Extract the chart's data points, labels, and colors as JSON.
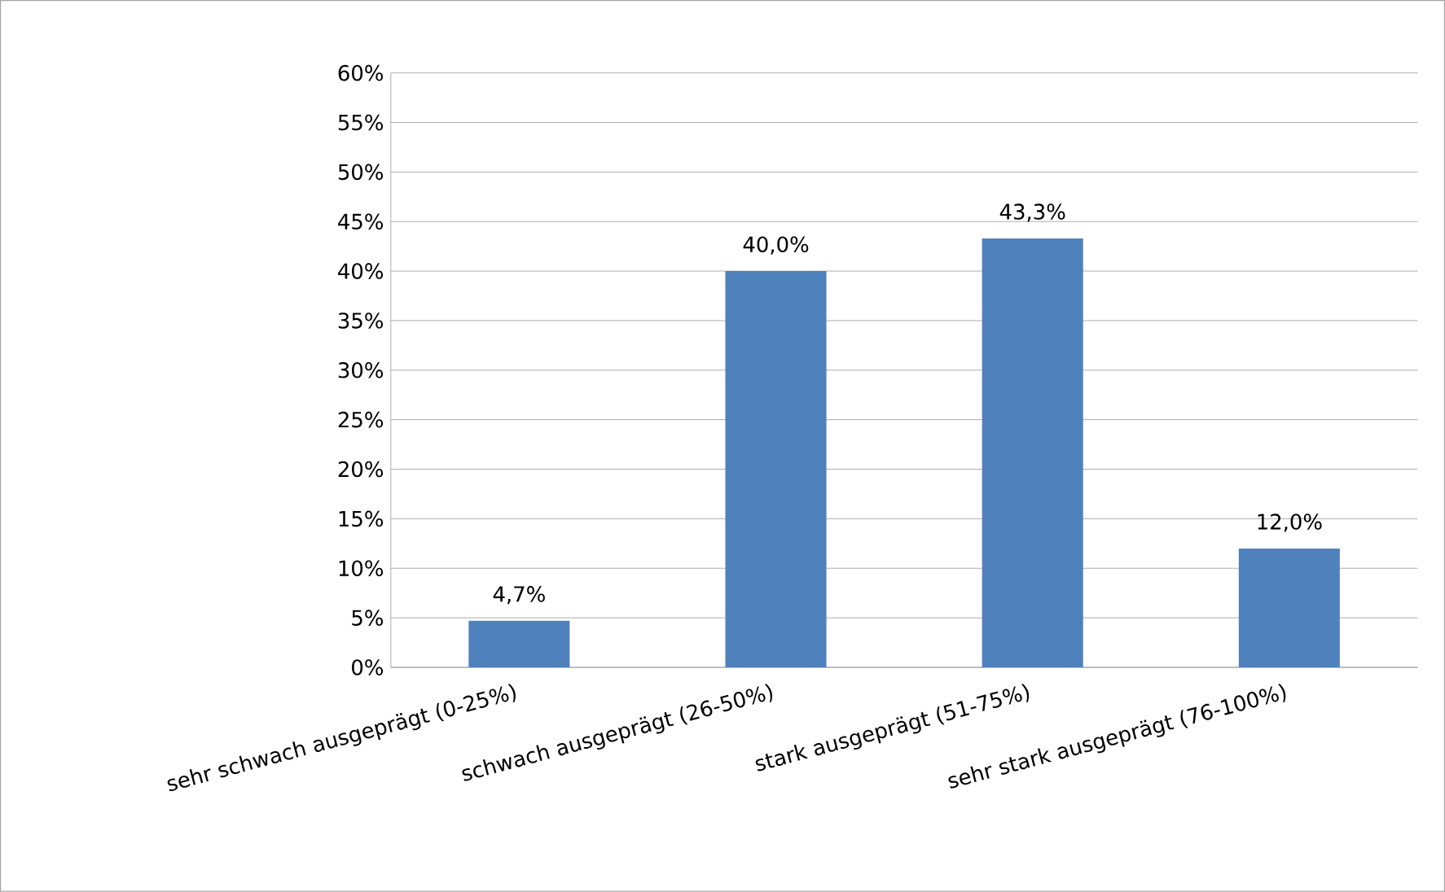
{
  "chart_data": {
    "type": "bar",
    "categories": [
      "sehr schwach ausgeprägt (0-25%)",
      "schwach ausgeprägt (26-50%)",
      "stark ausgeprägt (51-75%)",
      "sehr stark ausgeprägt (76-100%)"
    ],
    "values": [
      4.7,
      40.0,
      43.3,
      12.0
    ],
    "value_labels": [
      "4,7%",
      "40,0%",
      "43,3%",
      "12,0%"
    ],
    "color": "#4f81bd",
    "ylim": [
      0,
      60
    ],
    "yticks": [
      {
        "value": 0,
        "label": "0%"
      },
      {
        "value": 5,
        "label": "5%"
      },
      {
        "value": 10,
        "label": "10%"
      },
      {
        "value": 15,
        "label": "15%"
      },
      {
        "value": 20,
        "label": "20%"
      },
      {
        "value": 25,
        "label": "25%"
      },
      {
        "value": 30,
        "label": "30%"
      },
      {
        "value": 35,
        "label": "35%"
      },
      {
        "value": 40,
        "label": "40%"
      },
      {
        "value": 45,
        "label": "45%"
      },
      {
        "value": 50,
        "label": "50%"
      },
      {
        "value": 55,
        "label": "55%"
      },
      {
        "value": 60,
        "label": "60%"
      }
    ],
    "grid": "y"
  }
}
